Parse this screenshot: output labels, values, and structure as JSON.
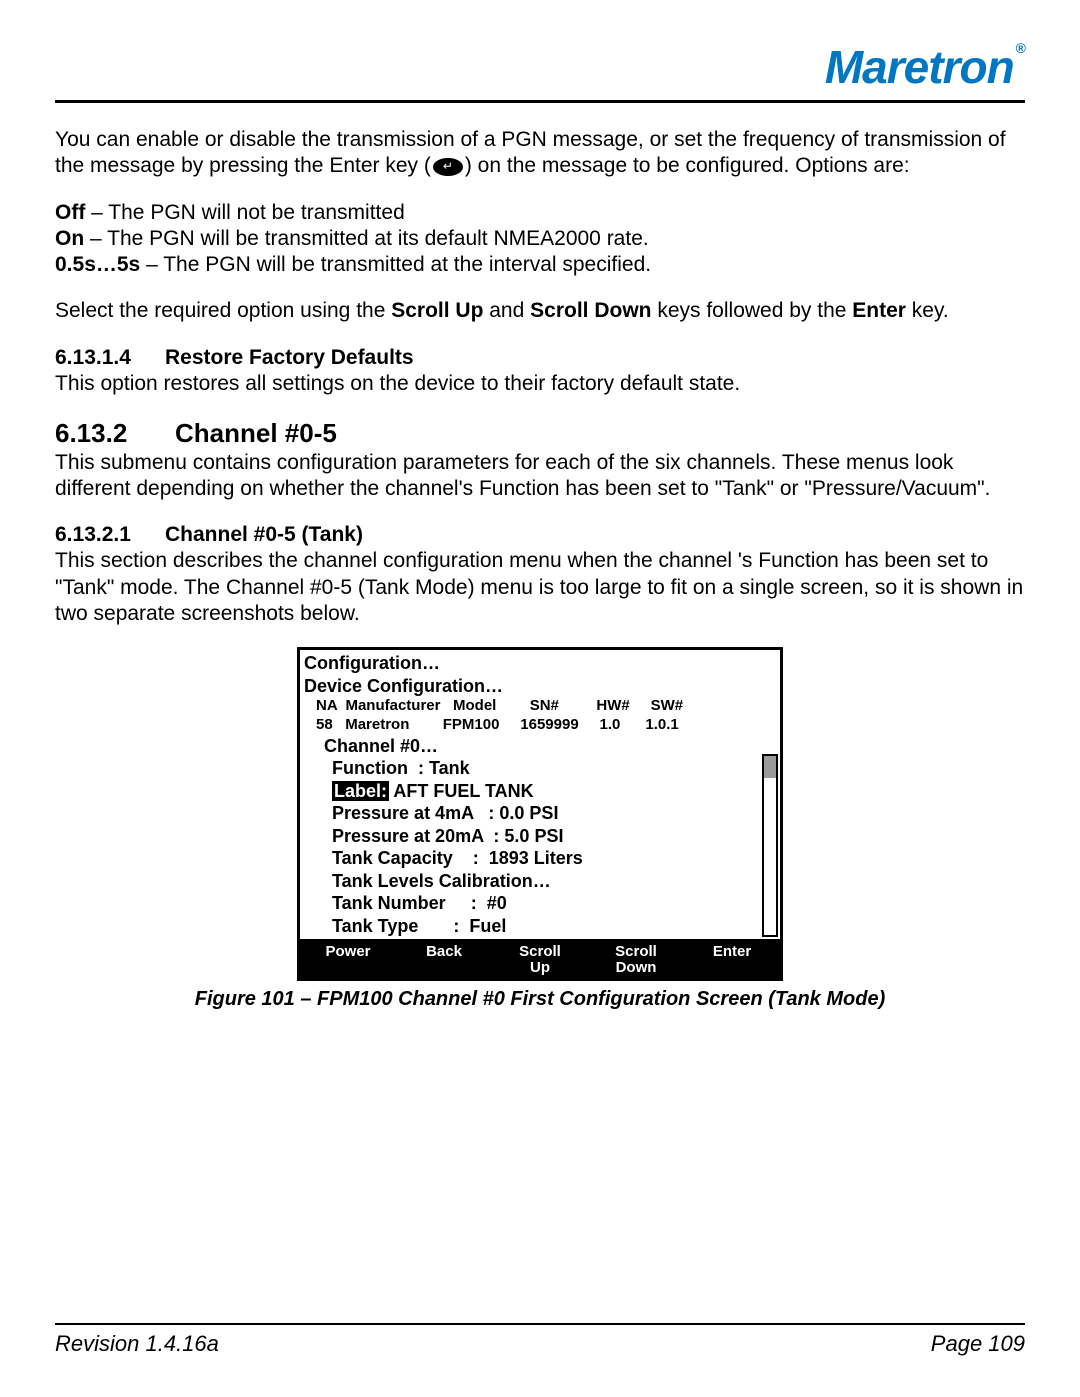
{
  "header": {
    "logo_text": "Maretron",
    "logo_color": "#0077c0"
  },
  "intro": {
    "p1_a": "You can enable or disable the transmission of a PGN message, or set the frequency of transmission of the message by pressing the Enter key (",
    "p1_b": ") on the message to be configured. Options are:"
  },
  "options": [
    {
      "label": "Off",
      "desc": " – The PGN will not be transmitted"
    },
    {
      "label": "On",
      "desc": " – The PGN will be transmitted at its default NMEA2000 rate."
    },
    {
      "label": "0.5s…5s",
      "desc": " – The PGN will be transmitted at the interval specified."
    }
  ],
  "select_text": {
    "a": "Select the required option using the ",
    "b": "Scroll Up",
    "c": " and ",
    "d": "Scroll Down",
    "e": " keys followed by the ",
    "f": "Enter",
    "g": " key."
  },
  "s61314": {
    "num": "6.13.1.4",
    "title": "Restore Factory Defaults",
    "text": "This option restores all settings on the device to their factory default state."
  },
  "s6132": {
    "num": "6.13.2",
    "title": "Channel #0-5",
    "text": "This submenu contains configuration parameters for each of the six channels. These menus look different depending on whether the channel's Function has been set to \"Tank\" or \"Pressure/Vacuum\"."
  },
  "s61321": {
    "num": "6.13.2.1",
    "title": "Channel #0-5 (Tank)",
    "text": "This section describes the channel configuration menu when the channel 's Function has been set to \"Tank\" mode. The Channel #0-5 (Tank Mode) menu is too large to fit on a single screen, so it is shown in two separate screenshots below."
  },
  "screen": {
    "line1": "Configuration…",
    "line2": "Device Configuration…",
    "th": {
      "na": "NA",
      "mfr": "Manufacturer",
      "model": "Model",
      "sn": "SN#",
      "hw": "HW#",
      "sw": "SW#"
    },
    "tr": {
      "na": "58",
      "mfr": "Maretron",
      "model": "FPM100",
      "sn": "1659999",
      "hw": "1.0",
      "sw": "1.0.1"
    },
    "ch": "Channel #0…",
    "func": "Function  : Tank",
    "label_key": "Label:",
    "label_val": " AFT FUEL TANK",
    "p4": "Pressure at 4mA   : 0.0 PSI",
    "p20": "Pressure at 20mA  : 5.0 PSI",
    "cap": "Tank Capacity    :  1893 Liters",
    "cal": "Tank Levels Calibration…",
    "tnum": "Tank Number     :  #0",
    "ttype": "Tank Type       :  Fuel",
    "footer": {
      "power": "Power",
      "back": "Back",
      "scroll_up_1": "Scroll",
      "scroll_up_2": "Up",
      "scroll_down_1": "Scroll",
      "scroll_down_2": "Down",
      "enter": "Enter"
    }
  },
  "figure_caption": "Figure 101 – FPM100 Channel #0 First Configuration Screen (Tank Mode)",
  "footer": {
    "revision": "Revision 1.4.16a",
    "page": "Page 109"
  }
}
